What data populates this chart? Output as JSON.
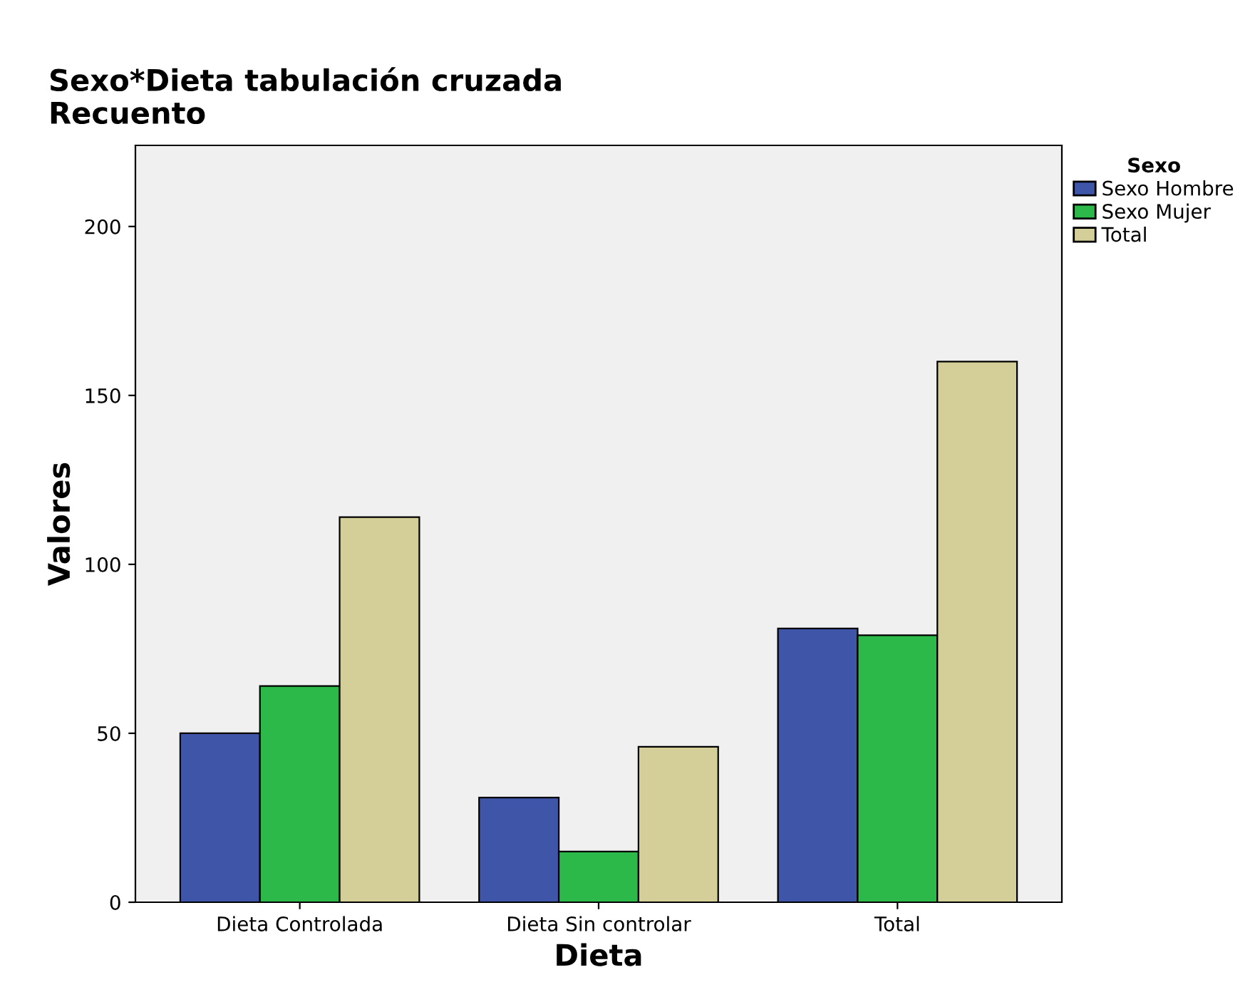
{
  "chart_data": {
    "type": "bar",
    "title": "Sexo*Dieta tabulación cruzada",
    "subtitle": "Recuento",
    "xlabel": "Dieta",
    "ylabel": "Valores",
    "legend_title": "Sexo",
    "categories": [
      "Dieta Controlada",
      "Dieta Sin controlar",
      "Total"
    ],
    "series": [
      {
        "name": "Sexo Hombre",
        "color": "#3f55a8",
        "values": [
          50,
          31,
          81
        ]
      },
      {
        "name": "Sexo Mujer",
        "color": "#2db84a",
        "values": [
          64,
          15,
          79
        ]
      },
      {
        "name": "Total",
        "color": "#d4cf98",
        "values": [
          114,
          46,
          160
        ]
      }
    ],
    "ylim": [
      0,
      224
    ],
    "yticks": [
      0,
      50,
      100,
      150,
      200
    ],
    "grid": false,
    "legend": "top right"
  }
}
